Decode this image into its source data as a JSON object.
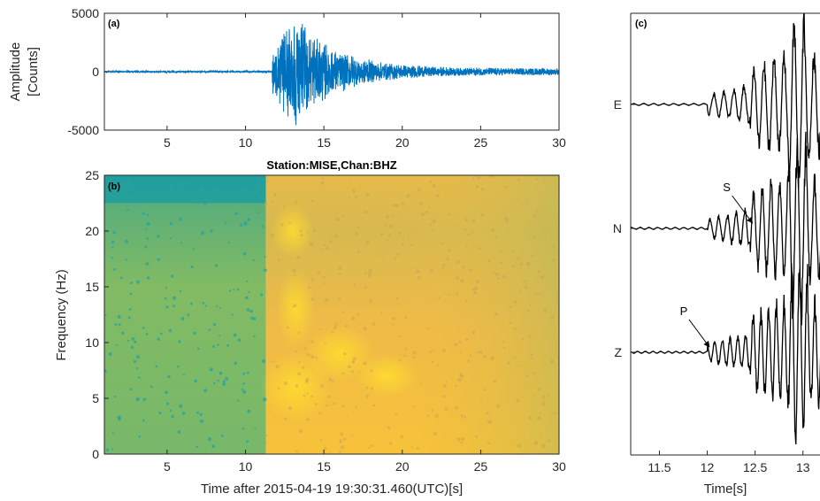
{
  "chart_data": [
    {
      "type": "line",
      "panel": "(a)",
      "title": "",
      "xlabel": "",
      "ylabel_lines": [
        "Amplitude",
        "[Counts]"
      ],
      "xlim": [
        1,
        30
      ],
      "ylim": [
        -5000,
        5000
      ],
      "xticks": [
        "5",
        "10",
        "15",
        "20",
        "25",
        "30"
      ],
      "yticks": [
        "5000",
        "0",
        "-5000"
      ],
      "series": [
        {
          "color": "#0072bd",
          "noise_end_s": 11.7,
          "peak_time_s": 13.0,
          "peak_amplitude": 5200,
          "coda_end_amplitude": 300,
          "end_s": 30
        }
      ]
    },
    {
      "type": "heatmap",
      "panel": "(b)",
      "title": "Station:MISE,Chan:BHZ",
      "xlabel": "Time after 2015-04-19 19:30:31.460(UTC)[s]",
      "ylabel": "Frequency (Hz)",
      "xlim": [
        1,
        30
      ],
      "ylim": [
        0,
        25
      ],
      "xticks": [
        "5",
        "10",
        "15",
        "20",
        "25",
        "30"
      ],
      "yticks": [
        "0",
        "5",
        "10",
        "15",
        "20",
        "25"
      ],
      "event_onset_s": 11.3,
      "colors": {
        "low": "#1f9ea0",
        "mid": "#8cbd52",
        "high": "#fbbf2a",
        "peak": "#ffde2e"
      }
    },
    {
      "type": "line",
      "panel": "(c)",
      "title": "",
      "xlabel": "Time[s]",
      "xlim": [
        11.2,
        13.4
      ],
      "xticks": [
        "11.5",
        "12",
        "12.5",
        "13"
      ],
      "traces": [
        {
          "name": "E",
          "onset_s": 12.0
        },
        {
          "name": "N",
          "onset_s": 12.0
        },
        {
          "name": "Z",
          "onset_s": 12.0
        }
      ],
      "annotations": [
        {
          "text": "S",
          "trace": "N",
          "time_s": 12.5
        },
        {
          "text": "P",
          "trace": "Z",
          "time_s": 12.05
        }
      ],
      "line_color": "#000000"
    }
  ]
}
